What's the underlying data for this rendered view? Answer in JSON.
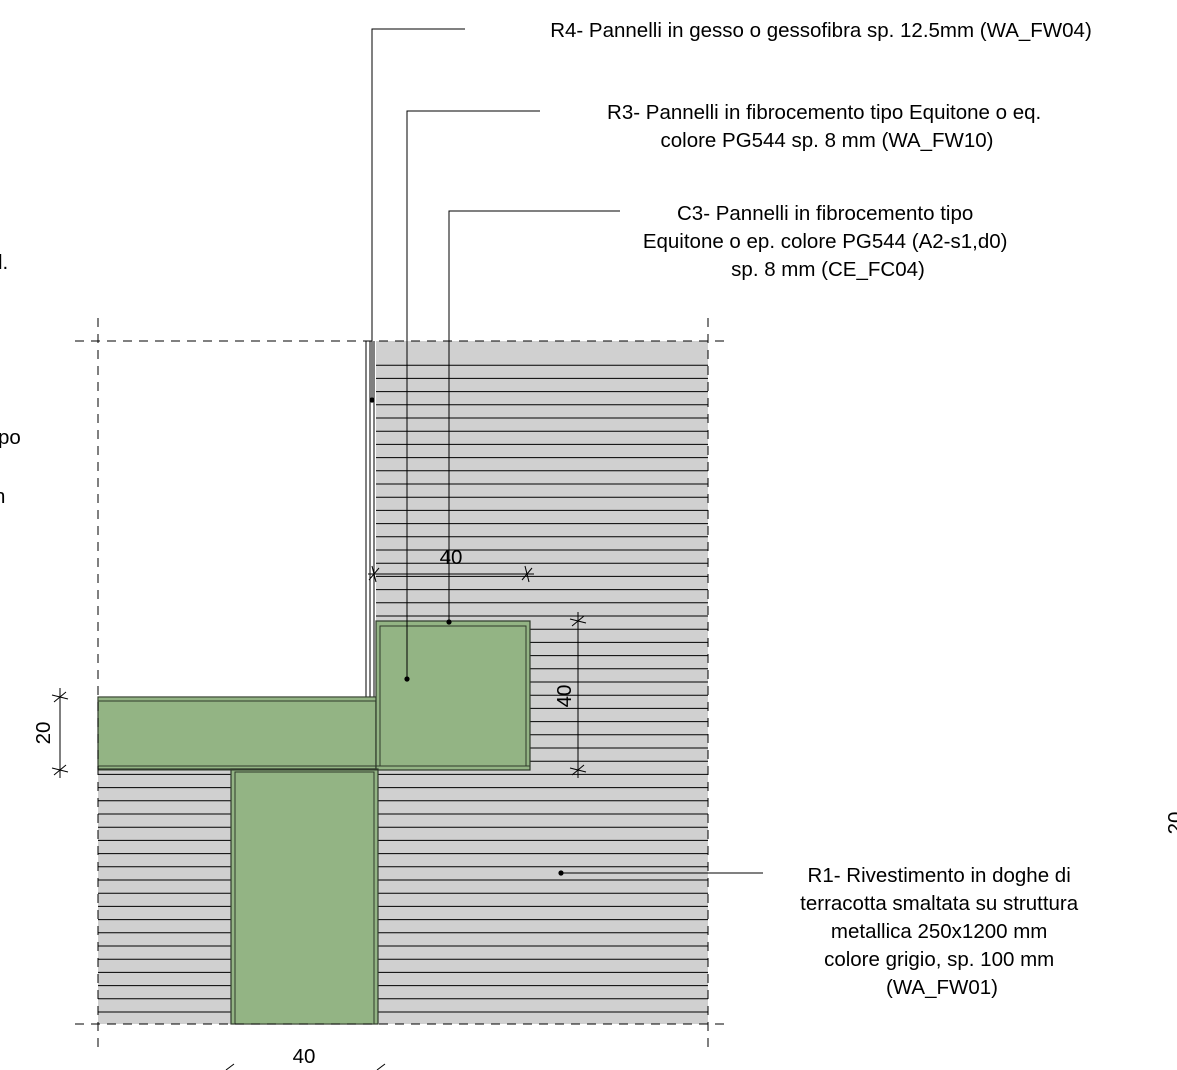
{
  "labels": {
    "r4": {
      "lines": [
        "R4- Pannelli in gesso o gessofibra sp. 12.5mm (WA_FW04)"
      ]
    },
    "r3": {
      "lines": [
        "R3- Pannelli in fibrocemento tipo Equitone o eq.",
        "colore PG544 sp. 8 mm (WA_FW10)"
      ]
    },
    "c3": {
      "lines": [
        "C3- Pannelli in fibrocemento tipo",
        "Equitone o ep. colore PG544 (A2-s1,d0)",
        "sp. 8 mm (CE_FC04)"
      ]
    },
    "r1": {
      "lines": [
        "R1- Rivestimento in doghe di",
        "terracotta smaltata su struttura",
        "metallica 250x1200 mm",
        "colore grigio, sp. 100 mm",
        "(WA_FW01)"
      ]
    }
  },
  "dimensions": {
    "top_width": "40",
    "right_height": "40",
    "left_height": "20",
    "bottom_width": "40"
  },
  "edge_fragments": {
    "left_a": "l.",
    "left_b": "po",
    "left_c": "n",
    "right": "20"
  },
  "colors": {
    "cladding": "#d0d0d0",
    "element": "#93b484",
    "element_edge": "#2f3a2a",
    "line": "#000000"
  }
}
